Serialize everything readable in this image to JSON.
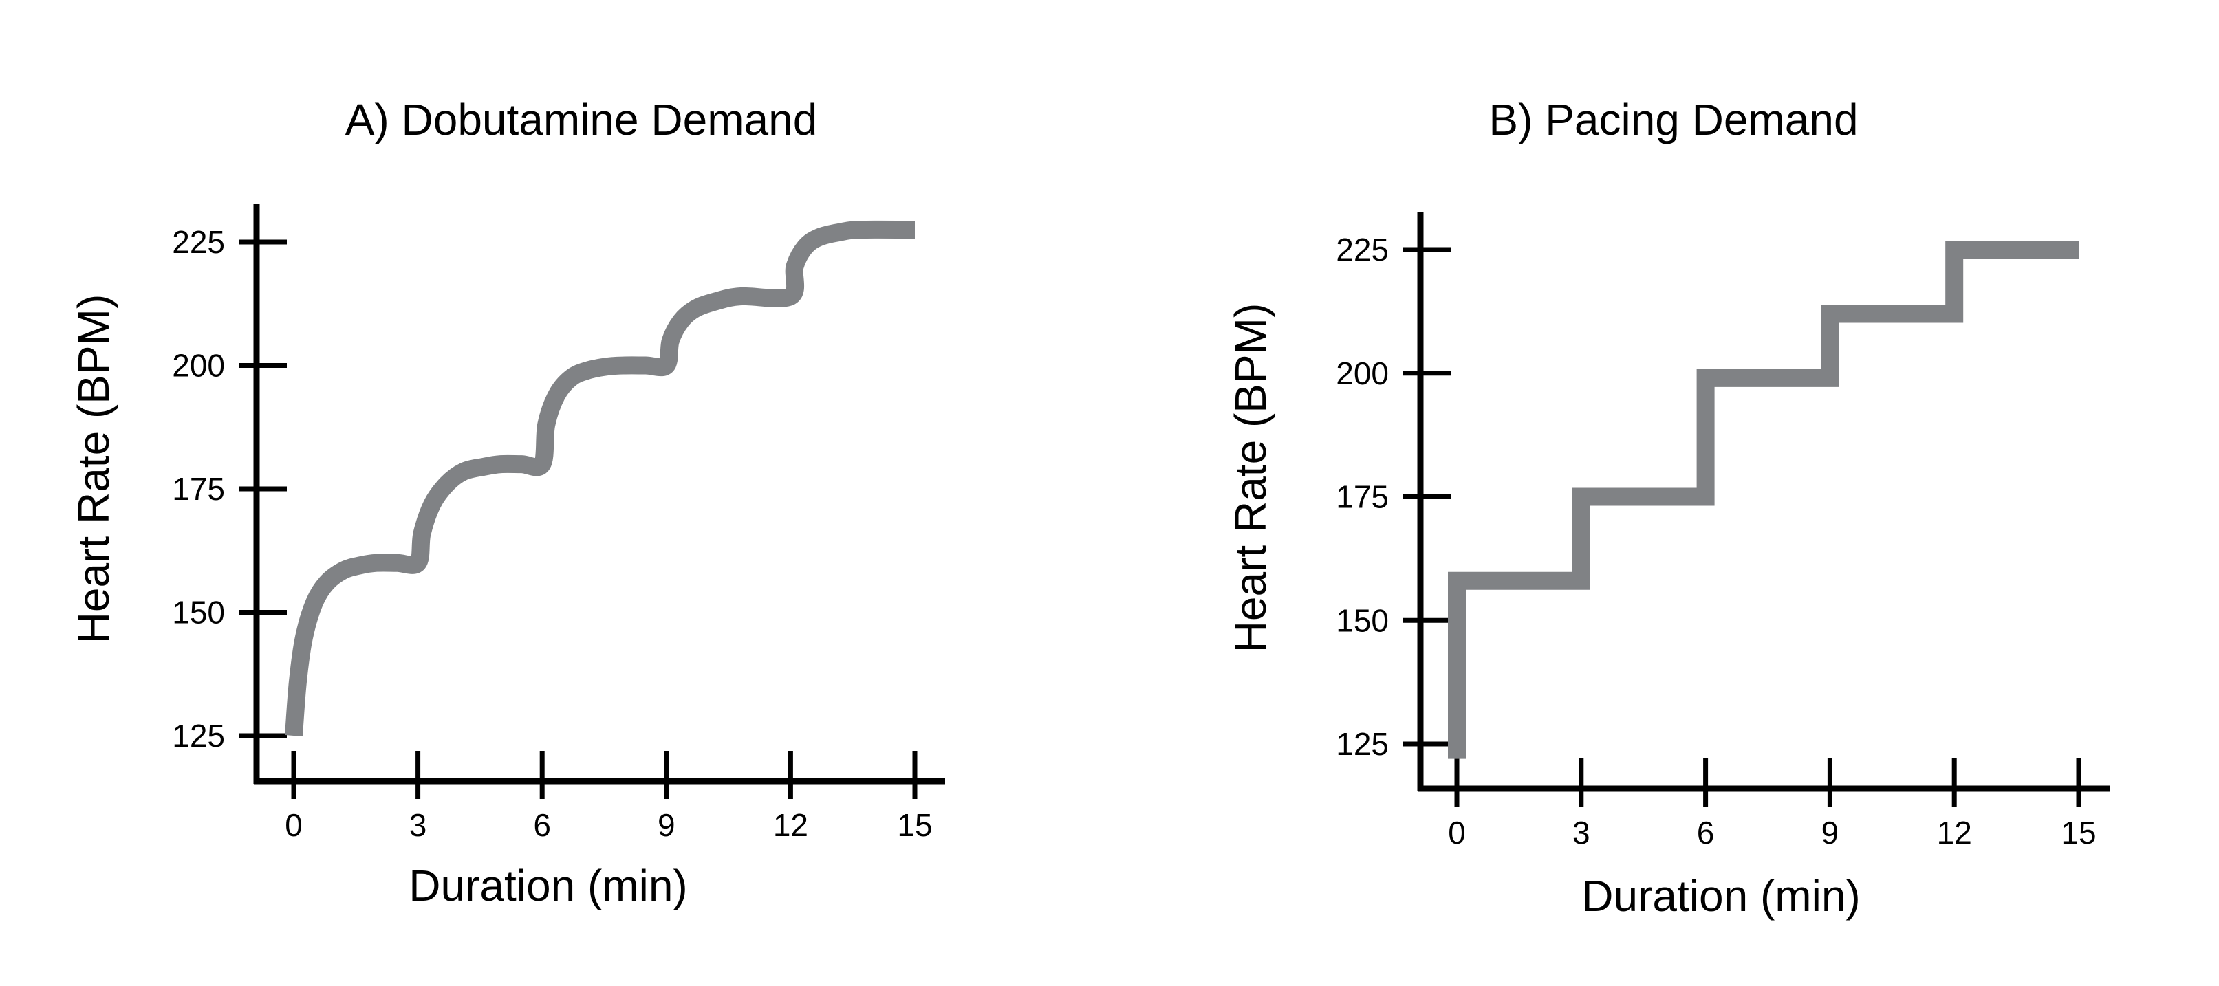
{
  "colors": {
    "series": "#808285",
    "axis": "#000000"
  },
  "chart_data": [
    {
      "type": "line",
      "title": "A) Dobutamine Demand",
      "xlabel": "Duration (min)",
      "ylabel": "Heart Rate (BPM)",
      "xlim": [
        0,
        15
      ],
      "ylim": [
        125,
        225
      ],
      "xticks": [
        "0",
        "3",
        "6",
        "9",
        "12",
        "15"
      ],
      "yticks": [
        "125",
        "150",
        "175",
        "200",
        "225"
      ],
      "shape": "smooth-steps",
      "x": [
        0,
        0.1,
        0.25,
        0.5,
        0.8,
        1.2,
        1.6,
        2,
        2.5,
        3,
        3.1,
        3.35,
        3.7,
        4.1,
        4.6,
        5,
        5.5,
        6,
        6.1,
        6.35,
        6.7,
        7.1,
        7.6,
        8,
        8.5,
        9,
        9.1,
        9.35,
        9.7,
        10.2,
        10.8,
        12,
        12.1,
        12.35,
        12.7,
        13.2,
        13.7,
        15
      ],
      "y": [
        125,
        136,
        145,
        152,
        156,
        158.5,
        159.5,
        160,
        160,
        160,
        166,
        172,
        176,
        178.5,
        179.5,
        180,
        180,
        180,
        188,
        194,
        197.5,
        199,
        199.8,
        200,
        200,
        200,
        205,
        209,
        211.5,
        213,
        214,
        214,
        220,
        224,
        226,
        227,
        227.5,
        227.5
      ]
    },
    {
      "type": "line",
      "title": "B) Pacing Demand",
      "xlabel": "Duration (min)",
      "ylabel": "Heart Rate (BPM)",
      "xlim": [
        0,
        15
      ],
      "ylim": [
        125,
        225
      ],
      "xticks": [
        "0",
        "3",
        "6",
        "9",
        "12",
        "15"
      ],
      "yticks": [
        "125",
        "150",
        "175",
        "200",
        "225"
      ],
      "shape": "steps",
      "x": [
        0,
        0,
        3,
        3,
        6,
        6,
        9,
        9,
        12,
        12,
        15
      ],
      "y": [
        122,
        158,
        158,
        175,
        175,
        199,
        199,
        212,
        212,
        225,
        225
      ]
    }
  ]
}
